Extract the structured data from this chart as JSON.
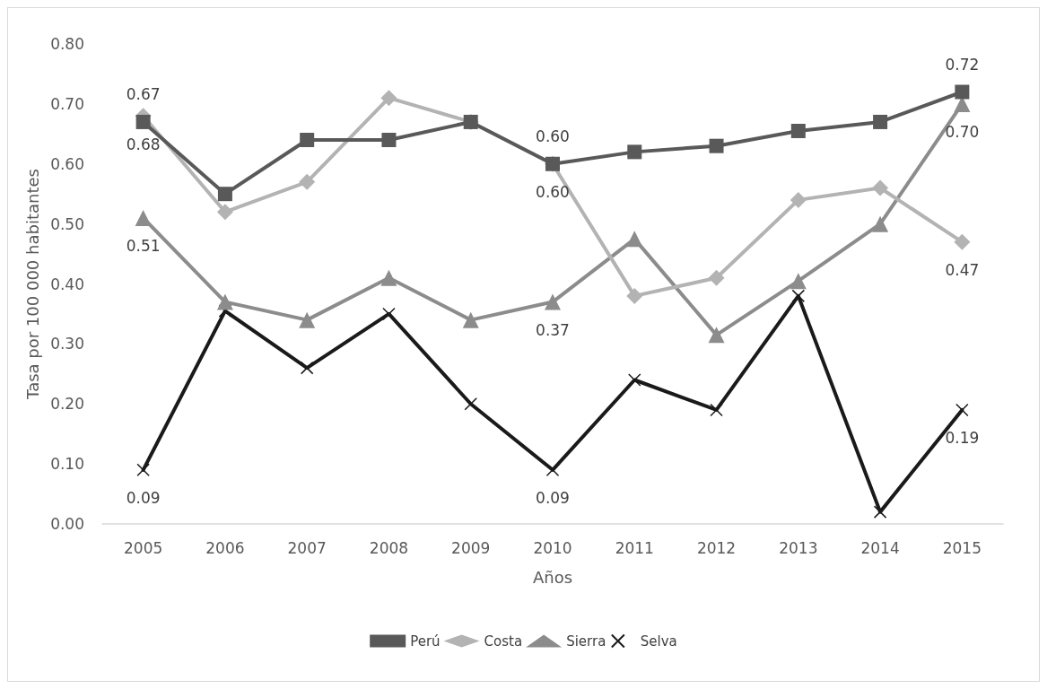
{
  "chart_data": {
    "type": "line",
    "xlabel": "Años",
    "ylabel": "Tasa por 100 000 habitantes",
    "categories": [
      "2005",
      "2006",
      "2007",
      "2008",
      "2009",
      "2010",
      "2011",
      "2012",
      "2013",
      "2014",
      "2015"
    ],
    "ylim": [
      0,
      0.8
    ],
    "yticks": [
      {
        "value": 0,
        "label": "0.00"
      },
      {
        "value": 0.1,
        "label": "0.10"
      },
      {
        "value": 0.2,
        "label": "0.20"
      },
      {
        "value": 0.3,
        "label": "0.30"
      },
      {
        "value": 0.4,
        "label": "0.40"
      },
      {
        "value": 0.5,
        "label": "0.50"
      },
      {
        "value": 0.6,
        "label": "0.60"
      },
      {
        "value": 0.7,
        "label": "0.70"
      },
      {
        "value": 0.8,
        "label": "0.80"
      }
    ],
    "grid": false,
    "legend": "bottom",
    "line_style": "solid",
    "series": [
      {
        "name": "Perú",
        "color": "#595959",
        "marker": "square",
        "values": [
          0.67,
          0.55,
          0.64,
          0.64,
          0.67,
          0.6,
          0.62,
          0.63,
          0.655,
          0.67,
          0.72
        ],
        "value_labels": [
          "0.67",
          null,
          null,
          null,
          null,
          "0.60",
          null,
          null,
          null,
          null,
          "0.72"
        ]
      },
      {
        "name": "Costa",
        "color": "#b3b3b3",
        "marker": "diamond",
        "values": [
          0.68,
          0.52,
          0.57,
          0.71,
          0.67,
          0.6,
          0.38,
          0.41,
          0.54,
          0.56,
          0.47
        ],
        "value_labels": [
          "0.68",
          null,
          null,
          null,
          null,
          "0.60",
          null,
          null,
          null,
          null,
          "0.47"
        ]
      },
      {
        "name": "Sierra",
        "color": "#8c8c8c",
        "marker": "triangle",
        "values": [
          0.51,
          0.37,
          0.34,
          0.41,
          0.34,
          0.37,
          0.475,
          0.315,
          0.405,
          0.5,
          0.7
        ],
        "value_labels": [
          "0.51",
          null,
          null,
          null,
          null,
          "0.37",
          null,
          null,
          null,
          null,
          "0.70"
        ]
      },
      {
        "name": "Selva",
        "color": "#1a1a1a",
        "marker": "cross",
        "values": [
          0.09,
          0.355,
          0.26,
          0.35,
          0.2,
          0.09,
          0.24,
          0.19,
          0.38,
          0.02,
          0.19
        ],
        "value_labels": [
          "0.09",
          null,
          null,
          null,
          null,
          "0.09",
          null,
          null,
          null,
          null,
          "0.19"
        ]
      }
    ]
  }
}
